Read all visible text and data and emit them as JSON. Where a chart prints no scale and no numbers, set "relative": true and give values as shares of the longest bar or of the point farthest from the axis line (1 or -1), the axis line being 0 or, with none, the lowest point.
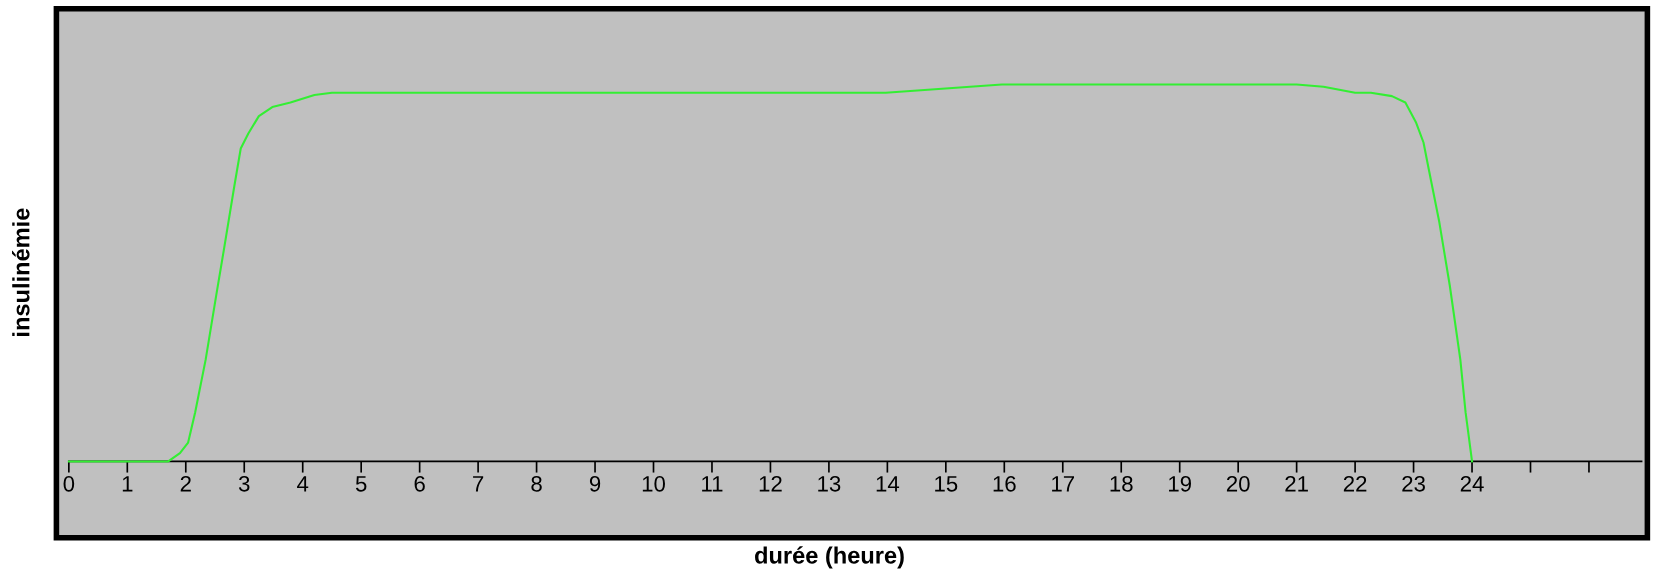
{
  "chart_data": {
    "type": "line",
    "xlabel": "durée (heure)",
    "ylabel": "insulinémie",
    "relative": true,
    "grid": false,
    "xlim": [
      0,
      26.9
    ],
    "xticks": [
      0,
      1,
      2,
      3,
      4,
      5,
      6,
      7,
      8,
      9,
      10,
      11,
      12,
      13,
      14,
      15,
      16,
      17,
      18,
      19,
      20,
      21,
      22,
      23,
      24,
      {
        "value": 25,
        "label": null
      },
      {
        "value": 26,
        "label": null
      }
    ],
    "series": [
      {
        "color": "#33ee33",
        "x": [
          0,
          0.63,
          1.0,
          1.53,
          1.7,
          1.9,
          2.04,
          2.16,
          2.34,
          2.52,
          2.65,
          2.83,
          2.94,
          3.07,
          3.25,
          3.48,
          3.79,
          4.2,
          4.5,
          13.97,
          15.96,
          21.0,
          21.46,
          22.0,
          22.27,
          22.63,
          22.86,
          23.04,
          23.17,
          23.26,
          23.44,
          23.62,
          23.8,
          23.89,
          24.0
        ],
        "values": [
          0,
          0,
          0,
          0,
          0,
          0.022,
          0.05,
          0.13,
          0.27,
          0.44,
          0.56,
          0.73,
          0.83,
          0.87,
          0.916,
          0.94,
          0.952,
          0.972,
          0.978,
          0.978,
          1.0,
          1.0,
          0.994,
          0.978,
          0.978,
          0.969,
          0.952,
          0.9,
          0.846,
          0.775,
          0.635,
          0.466,
          0.27,
          0.13,
          0
        ]
      }
    ]
  }
}
